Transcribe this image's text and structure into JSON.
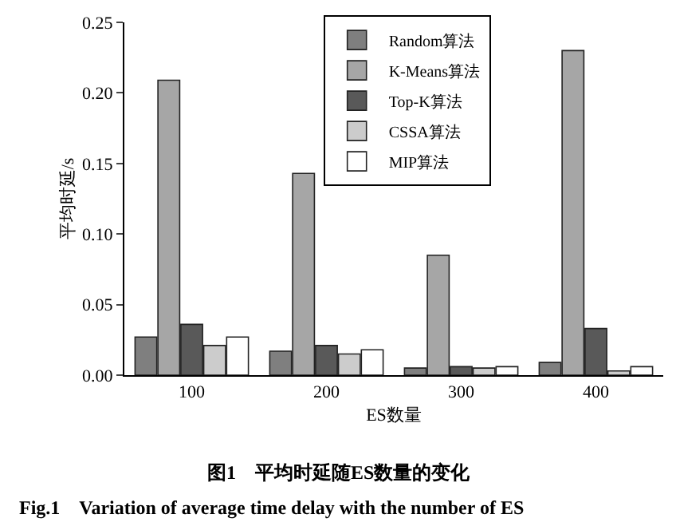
{
  "chart_data": {
    "type": "bar",
    "title": "图1　平均时延随ES数量的变化",
    "subtitle": "Fig.1　Variation of average time delay with the number of ES",
    "xlabel": "ES数量",
    "ylabel": "平均时延/s",
    "categories": [
      "100",
      "200",
      "300",
      "400"
    ],
    "series": [
      {
        "name": "Random算法",
        "color": "#7f7f7f",
        "values": [
          0.027,
          0.017,
          0.005,
          0.009
        ]
      },
      {
        "name": "K-Means算法",
        "color": "#a6a6a6",
        "values": [
          0.209,
          0.143,
          0.085,
          0.23
        ]
      },
      {
        "name": "Top-K算法",
        "color": "#595959",
        "values": [
          0.036,
          0.021,
          0.006,
          0.033
        ]
      },
      {
        "name": "CSSA算法",
        "color": "#cccccc",
        "values": [
          0.021,
          0.015,
          0.005,
          0.003
        ]
      },
      {
        "name": "MIP算法",
        "color": "#ffffff",
        "values": [
          0.027,
          0.018,
          0.006,
          0.006
        ]
      }
    ],
    "ylim": [
      0,
      0.25
    ],
    "yticks": [
      {
        "value": 0,
        "label": "0.00"
      },
      {
        "value": 0.05,
        "label": "0.05"
      },
      {
        "value": 0.1,
        "label": "0.10"
      },
      {
        "value": 0.15,
        "label": "0.15"
      },
      {
        "value": 0.2,
        "label": "0.20"
      },
      {
        "value": 0.25,
        "label": "0.25"
      }
    ],
    "grid": false,
    "legend": "top right"
  }
}
